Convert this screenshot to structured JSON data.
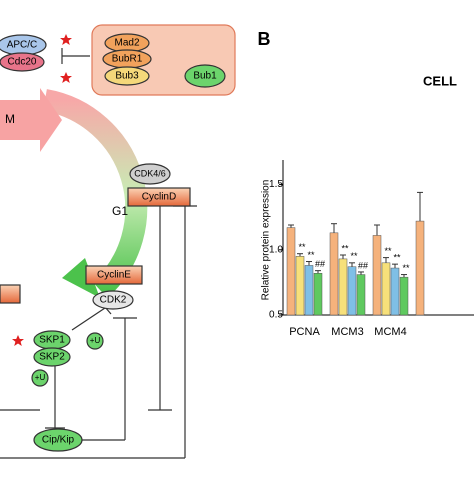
{
  "diagram": {
    "nodes": {
      "apc": "APC/C",
      "cdc20": "Cdc20",
      "mad2": "Mad2",
      "bubr1": "BubR1",
      "bub3": "Bub3",
      "bub1": "Bub1",
      "m": "M",
      "g1": "G1",
      "cdk46": "CDK4/6",
      "cyclind": "CyclinD",
      "cycline": "CyclinE",
      "cdk2": "CDK2",
      "skp1": "SKP1",
      "skp2": "SKP2",
      "u1": "+U",
      "u2": "+U",
      "cipkip": "Cip/Kip"
    }
  },
  "panel_label": "B",
  "chart_data": {
    "type": "bar",
    "title": "CELL",
    "y_label": "Relative protein expression",
    "categories": [
      "PCNA",
      "MCM3",
      "MCM4",
      null
    ],
    "series": [
      {
        "color": "#f5b27c",
        "values": [
          1.17,
          1.13,
          1.11,
          1.22
        ],
        "errors": [
          0.02,
          0.07,
          0.08,
          0.22
        ],
        "annotations": [
          null,
          null,
          null,
          null
        ]
      },
      {
        "color": "#f7e07a",
        "values": [
          0.95,
          0.93,
          0.9,
          null
        ],
        "errors": [
          0.02,
          0.03,
          0.04,
          null
        ],
        "annotations": [
          "**",
          "**",
          "**",
          null
        ]
      },
      {
        "color": "#7fbfe6",
        "values": [
          0.88,
          0.87,
          0.86,
          null
        ],
        "errors": [
          0.03,
          0.03,
          0.03,
          null
        ],
        "annotations": [
          "**",
          "**",
          "**",
          null
        ]
      },
      {
        "color": "#5fc95f",
        "values": [
          0.82,
          0.81,
          0.79,
          null
        ],
        "errors": [
          0.02,
          0.02,
          0.02,
          null
        ],
        "annotations": [
          "##",
          "##",
          "**",
          null
        ]
      }
    ],
    "ylim": [
      0.5,
      1.65
    ],
    "yticks": [
      {
        "value": 0.5,
        "label": "0.5"
      },
      {
        "value": 1.0,
        "label": "1.0"
      },
      {
        "value": 1.5,
        "label": "1.5"
      }
    ]
  }
}
